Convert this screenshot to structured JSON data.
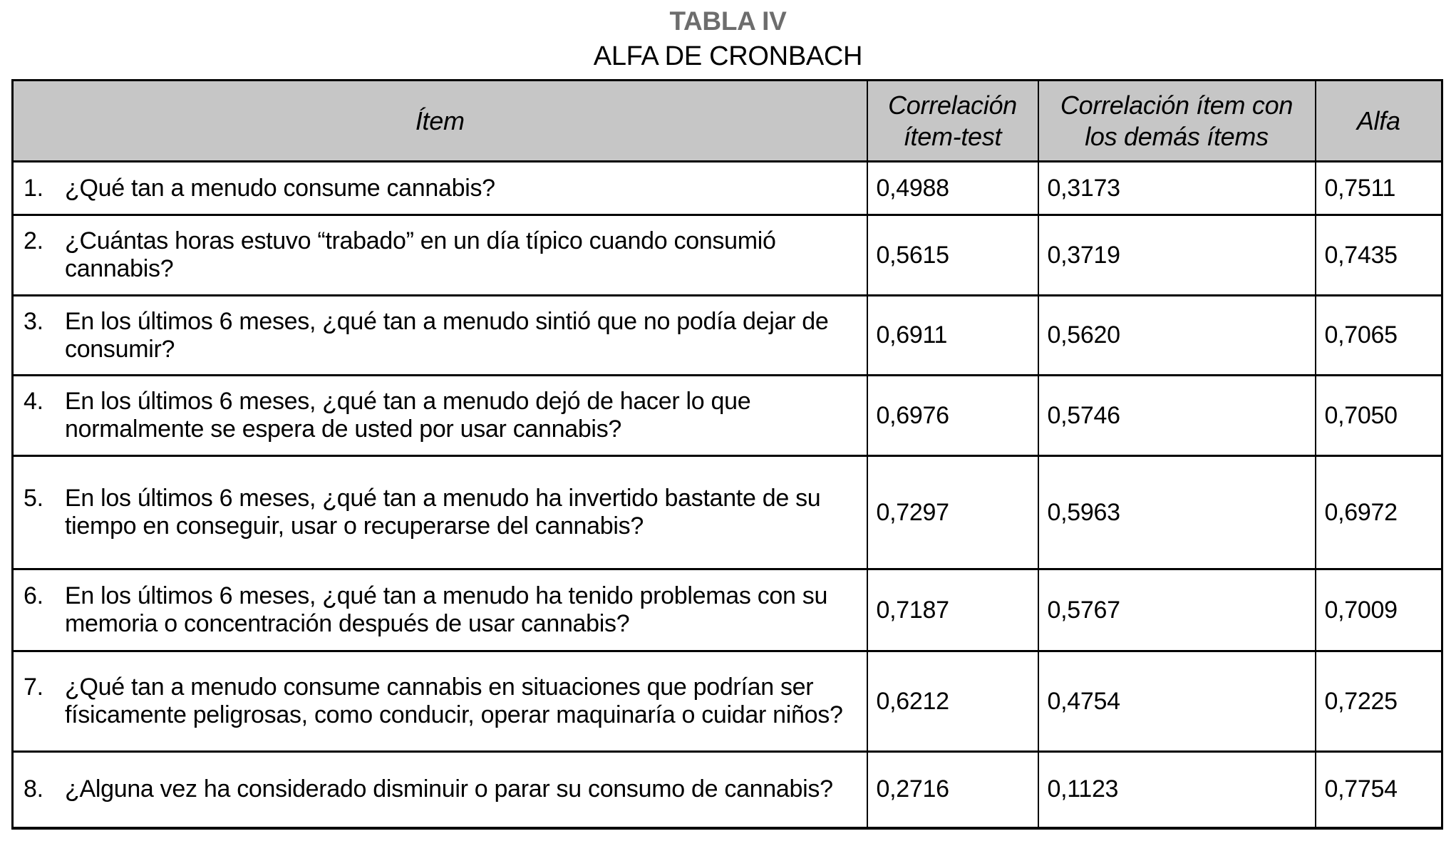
{
  "page": {
    "title": "TABLA IV",
    "subtitle": "ALFA DE CRONBACH"
  },
  "table": {
    "columns": [
      {
        "label": "Ítem"
      },
      {
        "label": "Correlación ítem-test"
      },
      {
        "label": "Correlación ítem con los demás ítems"
      },
      {
        "label": "Alfa"
      }
    ],
    "rows": [
      {
        "num": "1.",
        "item": "¿Qué tan a menudo consume cannabis?",
        "corr_item_test": "0,4988",
        "corr_item_otros": "0,3173",
        "alfa": "0,7511"
      },
      {
        "num": "2.",
        "item": "¿Cuántas horas estuvo “trabado” en un día típico cuando consumió cannabis?",
        "corr_item_test": "0,5615",
        "corr_item_otros": "0,3719",
        "alfa": "0,7435"
      },
      {
        "num": "3.",
        "item": "En los últimos 6 meses, ¿qué tan a menudo sintió que no podía dejar de consumir?",
        "corr_item_test": "0,6911",
        "corr_item_otros": "0,5620",
        "alfa": "0,7065"
      },
      {
        "num": "4.",
        "item": "En los últimos 6 meses, ¿qué tan a menudo dejó de hacer lo que normalmente se espera de usted por usar cannabis?",
        "corr_item_test": "0,6976",
        "corr_item_otros": "0,5746",
        "alfa": "0,7050"
      },
      {
        "num": "5.",
        "item": "En los últimos 6 meses, ¿qué tan a menudo ha invertido bastante de su tiempo en conseguir, usar o recuperarse del cannabis?",
        "corr_item_test": "0,7297",
        "corr_item_otros": "0,5963",
        "alfa": "0,6972"
      },
      {
        "num": "6.",
        "item": "En los últimos 6 meses, ¿qué tan a menudo ha tenido problemas con su memoria o concentración después de usar cannabis?",
        "corr_item_test": "0,7187",
        "corr_item_otros": "0,5767",
        "alfa": "0,7009"
      },
      {
        "num": "7.",
        "item": "¿Qué tan a menudo consume cannabis en situaciones que podrían ser físicamente peligrosas, como conducir, operar maquinaría o cuidar niños?",
        "corr_item_test": "0,6212",
        "corr_item_otros": "0,4754",
        "alfa": "0,7225"
      },
      {
        "num": "8.",
        "item": "¿Alguna vez ha considerado disminuir o parar su consumo de cannabis?",
        "corr_item_test": "0,2716",
        "corr_item_otros": "0,1123",
        "alfa": "0,7754"
      }
    ]
  },
  "colors": {
    "header_bg": "#c6c6c6",
    "title_gray": "#6d6d6d",
    "border": "#000000",
    "text": "#000000"
  }
}
